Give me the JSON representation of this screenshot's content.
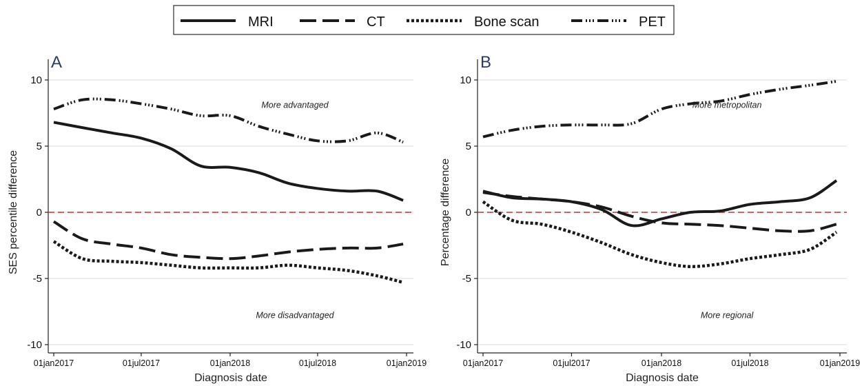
{
  "legend": {
    "position": "top-center",
    "items": [
      {
        "name": "MRI",
        "style": "solid"
      },
      {
        "name": "CT",
        "style": "dash"
      },
      {
        "name": "Bone scan",
        "style": "dot"
      },
      {
        "name": "PET",
        "style": "dashdot"
      }
    ]
  },
  "colors": {
    "reference_line": "#b03a3a",
    "grid": "#dbe4e8",
    "series": "#1a1a1a",
    "panel_letter": "#2b3a67"
  },
  "chart_data": [
    {
      "type": "line",
      "panel": "A",
      "xlabel": "Diagnosis date",
      "ylabel": "SES percentile difference",
      "x_ticks": [
        "01jan2017",
        "01jul2017",
        "01jan2018",
        "01jul2018",
        "01jan2019"
      ],
      "x_range": [
        "01jan2017",
        "01jan2019"
      ],
      "ylim": [
        -10,
        10
      ],
      "y_ticks": [
        10,
        5,
        0,
        -5,
        -10
      ],
      "reference_line_y": 0,
      "grid": true,
      "annotations": [
        {
          "text": "More advantaged",
          "x": "2018-05-15",
          "y": 7.9
        },
        {
          "text": "More disadvantaged",
          "x": "2018-05-15",
          "y": -8.0
        }
      ],
      "x": [
        "2017-01-01",
        "2017-03-01",
        "2017-05-01",
        "2017-07-01",
        "2017-09-01",
        "2017-11-01",
        "2018-01-01",
        "2018-03-01",
        "2018-05-01",
        "2018-07-01",
        "2018-09-01",
        "2018-11-01",
        "2018-12-25"
      ],
      "series": [
        {
          "name": "MRI",
          "values": [
            6.8,
            6.4,
            6.0,
            5.6,
            4.8,
            3.5,
            3.4,
            3.0,
            2.2,
            1.8,
            1.6,
            1.6,
            0.9
          ]
        },
        {
          "name": "CT",
          "values": [
            -0.7,
            -2.0,
            -2.4,
            -2.7,
            -3.2,
            -3.4,
            -3.5,
            -3.3,
            -3.0,
            -2.8,
            -2.7,
            -2.7,
            -2.4
          ]
        },
        {
          "name": "Bone scan",
          "values": [
            -2.2,
            -3.5,
            -3.7,
            -3.8,
            -4.0,
            -4.2,
            -4.2,
            -4.2,
            -4.0,
            -4.2,
            -4.4,
            -4.8,
            -5.3
          ]
        },
        {
          "name": "PET",
          "values": [
            7.8,
            8.5,
            8.5,
            8.2,
            7.8,
            7.3,
            7.3,
            6.5,
            5.9,
            5.4,
            5.4,
            6.0,
            5.3
          ]
        }
      ]
    },
    {
      "type": "line",
      "panel": "B",
      "xlabel": "Diagnosis date",
      "ylabel": "Percentage difference",
      "x_ticks": [
        "01jan2017",
        "01jul2017",
        "01jan2018",
        "01jul2018",
        "01jan2019"
      ],
      "x_range": [
        "01jan2017",
        "01jan2019"
      ],
      "ylim": [
        -10,
        10
      ],
      "y_ticks": [
        10,
        5,
        0,
        -5,
        -10
      ],
      "reference_line_y": 0,
      "grid": true,
      "annotations": [
        {
          "text": "More metropolitan",
          "x": "2018-05-15",
          "y": 7.9
        },
        {
          "text": "More regional",
          "x": "2018-05-15",
          "y": -8.0
        }
      ],
      "x": [
        "2017-01-01",
        "2017-03-01",
        "2017-05-01",
        "2017-07-01",
        "2017-09-01",
        "2017-11-01",
        "2018-01-01",
        "2018-03-01",
        "2018-05-01",
        "2018-07-01",
        "2018-09-01",
        "2018-11-01",
        "2018-12-25"
      ],
      "series": [
        {
          "name": "MRI",
          "values": [
            1.6,
            1.1,
            1.0,
            0.8,
            0.2,
            -1.0,
            -0.5,
            0.0,
            0.1,
            0.6,
            0.8,
            1.1,
            2.4
          ]
        },
        {
          "name": "CT",
          "values": [
            1.5,
            1.2,
            1.0,
            0.8,
            0.4,
            -0.3,
            -0.8,
            -0.9,
            -1.0,
            -1.2,
            -1.4,
            -1.4,
            -0.9
          ]
        },
        {
          "name": "Bone scan",
          "values": [
            0.8,
            -0.6,
            -0.9,
            -1.5,
            -2.3,
            -3.2,
            -3.8,
            -4.1,
            -3.9,
            -3.5,
            -3.2,
            -2.8,
            -1.5
          ]
        },
        {
          "name": "PET",
          "values": [
            5.7,
            6.2,
            6.5,
            6.6,
            6.6,
            6.7,
            7.8,
            8.2,
            8.4,
            8.9,
            9.3,
            9.6,
            9.9
          ]
        }
      ]
    }
  ]
}
